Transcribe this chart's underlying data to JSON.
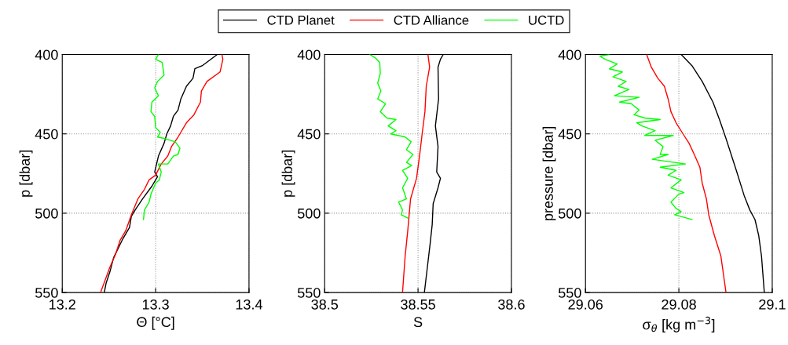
{
  "chart_data": [
    {
      "type": "line",
      "xlabel": "Θ [°C]",
      "ylabel": "p [dbar]",
      "xlim": [
        13.2,
        13.4
      ],
      "xticks": [
        13.2,
        13.3,
        13.4
      ],
      "ylim": [
        550,
        400
      ],
      "yticks": [
        400,
        450,
        500,
        550
      ],
      "grid": true,
      "legend": "top",
      "line_style": "solid",
      "series": [
        {
          "name": "CTD Planet",
          "color": "#000000",
          "x": [
            13.366,
            13.35,
            13.342,
            13.34,
            13.333,
            13.327,
            13.324,
            13.319,
            13.316,
            13.312,
            13.309,
            13.303,
            13.299,
            13.302,
            13.296,
            13.286,
            13.278,
            13.274,
            13.272,
            13.265,
            13.26,
            13.255,
            13.251,
            13.247,
            13.245
          ],
          "values": [
            400,
            407,
            409,
            415,
            420,
            428,
            435,
            439,
            445,
            450,
            456,
            464,
            474,
            477,
            483,
            491,
            498,
            502,
            509,
            516,
            522,
            528,
            537,
            544,
            550
          ]
        },
        {
          "name": "CTD Alliance",
          "color": "#ff0000",
          "x": [
            13.371,
            13.372,
            13.369,
            13.355,
            13.349,
            13.348,
            13.341,
            13.333,
            13.324,
            13.317,
            13.313,
            13.306,
            13.3,
            13.293,
            13.288,
            13.281,
            13.274,
            13.268,
            13.262,
            13.257,
            13.251,
            13.246,
            13.241
          ],
          "values": [
            400,
            403,
            411,
            417,
            423,
            430,
            438,
            443,
            452,
            458,
            464,
            469,
            476,
            479,
            485,
            491,
            501,
            511,
            517,
            526,
            534,
            542,
            550
          ]
        },
        {
          "name": "UCTD",
          "color": "#00ff00",
          "x": [
            13.303,
            13.3,
            13.307,
            13.309,
            13.302,
            13.299,
            13.303,
            13.296,
            13.295,
            13.299,
            13.3,
            13.305,
            13.302,
            13.31,
            13.321,
            13.326,
            13.324,
            13.319,
            13.313,
            13.303,
            13.306,
            13.304,
            13.3,
            13.295,
            13.293,
            13.288,
            13.287
          ],
          "values": [
            400,
            403,
            405,
            413,
            417,
            421,
            426,
            430,
            436,
            439,
            446,
            449,
            452,
            453,
            455,
            459,
            463,
            464,
            469,
            469,
            474,
            479,
            481,
            488,
            493,
            498,
            504
          ]
        }
      ]
    },
    {
      "type": "line",
      "xlabel": "S",
      "ylabel": "p [dbar]",
      "xlim": [
        38.5,
        38.6
      ],
      "xticks": [
        38.5,
        38.55,
        38.6
      ],
      "ylim": [
        550,
        400
      ],
      "yticks": [
        400,
        450,
        500,
        550
      ],
      "grid": true,
      "line_style": "solid",
      "series": [
        {
          "color": "#000000",
          "x": [
            38.5635,
            38.562,
            38.5607,
            38.561,
            38.5593,
            38.5607,
            38.56,
            38.562,
            38.5607,
            38.5581,
            38.5576,
            38.5565,
            38.5548,
            38.5534
          ],
          "values": [
            400,
            403,
            408,
            428,
            445,
            458,
            474,
            478,
            484,
            494,
            507,
            519,
            536,
            550
          ]
        },
        {
          "color": "#ff0000",
          "x": [
            38.5553,
            38.5562,
            38.5544,
            38.5537,
            38.5522,
            38.5508,
            38.5492,
            38.546,
            38.5445,
            38.5431,
            38.5417
          ],
          "values": [
            400,
            408,
            420,
            436,
            450,
            464,
            478,
            491,
            511,
            527,
            550
          ]
        },
        {
          "color": "#00ff00",
          "x": [
            38.5242,
            38.527,
            38.5295,
            38.5298,
            38.5284,
            38.5301,
            38.5284,
            38.5326,
            38.5298,
            38.5333,
            38.5382,
            38.534,
            38.5382,
            38.5354,
            38.5431,
            38.5463,
            38.5438,
            38.5473,
            38.5438,
            38.5466,
            38.5417,
            38.5445,
            38.5417,
            38.5438,
            38.5396,
            38.5417,
            38.541,
            38.5445
          ],
          "values": [
            400,
            402,
            405,
            412,
            418,
            423,
            428,
            431,
            436,
            440,
            441,
            445,
            448,
            450,
            452,
            455,
            460,
            463,
            468,
            470,
            473,
            478,
            484,
            491,
            493,
            498,
            501,
            503
          ]
        }
      ]
    },
    {
      "type": "line",
      "xlabel": "σ$_{θ}$ [kg m$^{−3}$]",
      "ylabel": "pressure [dbar]",
      "xlim": [
        29.06,
        29.1
      ],
      "xticks": [
        29.06,
        29.08,
        29.1
      ],
      "ylim": [
        550,
        400
      ],
      "yticks": [
        400,
        450,
        500,
        550
      ],
      "grid": true,
      "line_style": "solid",
      "series": [
        {
          "color": "#000000",
          "x": [
            29.0805,
            29.0828,
            29.085,
            29.0873,
            29.0887,
            29.0901,
            29.0912,
            29.0923,
            29.094,
            29.0952,
            29.0963,
            29.0971,
            29.0977,
            29.0983
          ],
          "values": [
            400,
            407,
            417,
            430,
            441,
            453,
            463,
            473,
            489,
            498,
            504,
            514,
            527,
            550
          ]
        },
        {
          "color": "#ff0000",
          "x": [
            29.0731,
            29.0741,
            29.0755,
            29.0769,
            29.0777,
            29.0783,
            29.0794,
            29.0811,
            29.0822,
            29.0833,
            29.0845,
            29.085,
            29.0859,
            29.0864,
            29.0876,
            29.089,
            29.0901
          ],
          "values": [
            400,
            408,
            415,
            420,
            428,
            436,
            443,
            451,
            456,
            463,
            471,
            481,
            491,
            501,
            514,
            527,
            550
          ]
        },
        {
          "color": "#00ff00",
          "x": [
            29.0651,
            29.0631,
            29.0642,
            29.0668,
            29.0651,
            29.0679,
            29.0659,
            29.0687,
            29.067,
            29.0693,
            29.0662,
            29.0715,
            29.0673,
            29.0698,
            29.0715,
            29.0704,
            29.0727,
            29.076,
            29.071,
            29.0721,
            29.0749,
            29.0727,
            29.0788,
            29.0749,
            29.0766,
            29.076,
            29.0777,
            29.0743,
            29.0814,
            29.076,
            29.0794,
            29.0777,
            29.0805,
            29.0783,
            29.0811,
            29.08,
            29.0783,
            29.0794,
            29.0805,
            29.0791,
            29.0828
          ],
          "values": [
            400,
            401,
            403,
            406,
            409,
            411,
            414,
            417,
            420,
            422,
            426,
            427,
            430,
            431,
            435,
            438,
            440,
            441,
            443,
            445,
            448,
            451,
            451,
            454,
            458,
            463,
            463,
            466,
            469,
            471,
            473,
            476,
            479,
            484,
            487,
            488,
            493,
            497,
            499,
            501,
            504
          ]
        }
      ]
    }
  ]
}
